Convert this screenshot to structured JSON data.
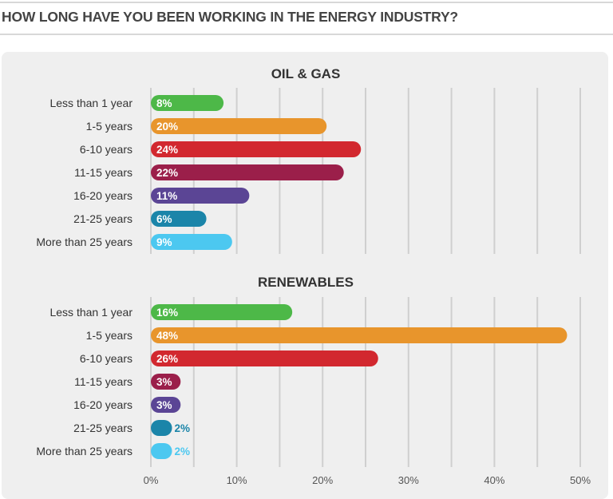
{
  "title": "HOW LONG HAVE YOU BEEN WORKING IN THE ENERGY INDUSTRY?",
  "chart_data": [
    {
      "type": "bar",
      "orientation": "horizontal",
      "title": "OIL & GAS",
      "categories": [
        "Less than 1 year",
        "1-5 years",
        "6-10 years",
        "11-15 years",
        "16-20 years",
        "21-25 years",
        "More than 25 years"
      ],
      "values": [
        8,
        20,
        24,
        22,
        11,
        6,
        9
      ],
      "labels": [
        "8%",
        "20%",
        "24%",
        "22%",
        "11%",
        "6%",
        "9%"
      ],
      "colors": [
        "#4db848",
        "#e8952c",
        "#d2282f",
        "#9b1f4a",
        "#5b4595",
        "#1b85a9",
        "#4cc8f0"
      ],
      "xlim": [
        0,
        50
      ],
      "grid": true
    },
    {
      "type": "bar",
      "orientation": "horizontal",
      "title": "RENEWABLES",
      "categories": [
        "Less than 1 year",
        "1-5 years",
        "6-10 years",
        "11-15 years",
        "16-20 years",
        "21-25 years",
        "More than 25 years"
      ],
      "values": [
        16,
        48,
        26,
        3,
        3,
        2,
        2
      ],
      "labels": [
        "16%",
        "48%",
        "26%",
        "3%",
        "3%",
        "2%",
        "2%"
      ],
      "colors": [
        "#4db848",
        "#e8952c",
        "#d2282f",
        "#9b1f4a",
        "#5b4595",
        "#1b85a9",
        "#4cc8f0"
      ],
      "xlim": [
        0,
        50
      ],
      "grid": true,
      "xticks": [
        "0%",
        "10%",
        "20%",
        "30%",
        "40%",
        "50%"
      ]
    }
  ]
}
